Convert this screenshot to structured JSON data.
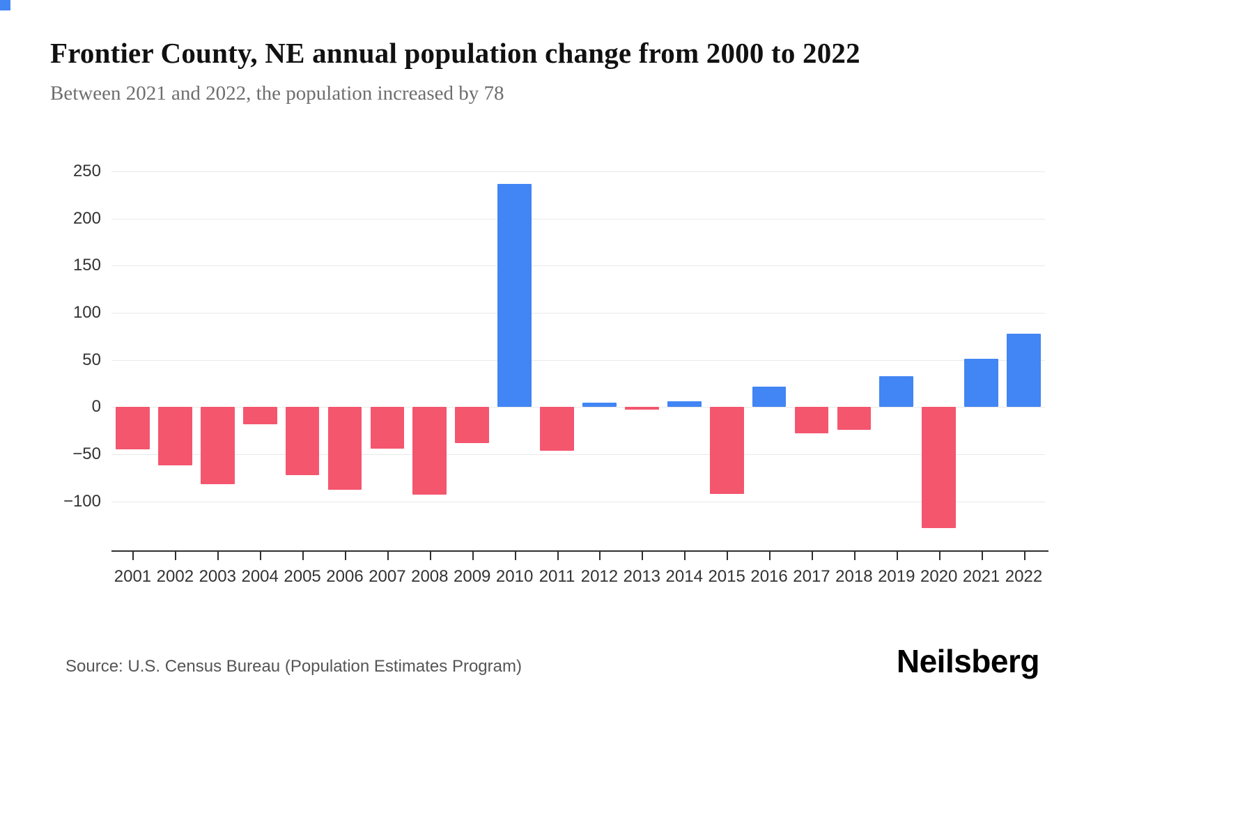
{
  "page": {
    "title": "Frontier County, NE annual population change from 2000 to 2022",
    "subtitle": "Between 2021 and 2022, the population increased by 78",
    "source": "Source: U.S. Census Bureau (Population Estimates Program)",
    "brand": "Neilsberg"
  },
  "colors": {
    "positive_bar": "#4285f4",
    "negative_bar": "#f4566e",
    "accent_square": "#4285f4",
    "gridline": "#e9e9e9",
    "axis": "#2f2f2f"
  },
  "chart_data": {
    "type": "bar",
    "title": "Frontier County, NE annual population change from 2000 to 2022",
    "subtitle": "Between 2021 and 2022, the population increased by 78",
    "xlabel": "",
    "ylabel": "",
    "categories": [
      "2001",
      "2002",
      "2003",
      "2004",
      "2005",
      "2006",
      "2007",
      "2008",
      "2009",
      "2010",
      "2011",
      "2012",
      "2013",
      "2014",
      "2015",
      "2016",
      "2017",
      "2018",
      "2019",
      "2020",
      "2021",
      "2022"
    ],
    "values": [
      -45,
      -62,
      -82,
      -18,
      -72,
      -88,
      -44,
      -93,
      -38,
      237,
      -46,
      5,
      -3,
      6,
      -92,
      22,
      -28,
      -24,
      33,
      -128,
      51,
      78
    ],
    "yticks": [
      -100,
      -50,
      0,
      50,
      100,
      150,
      200,
      250
    ],
    "ylim": [
      -152,
      262
    ],
    "grid": true,
    "legend": "none",
    "positive_color": "#4285f4",
    "negative_color": "#f4566e"
  }
}
